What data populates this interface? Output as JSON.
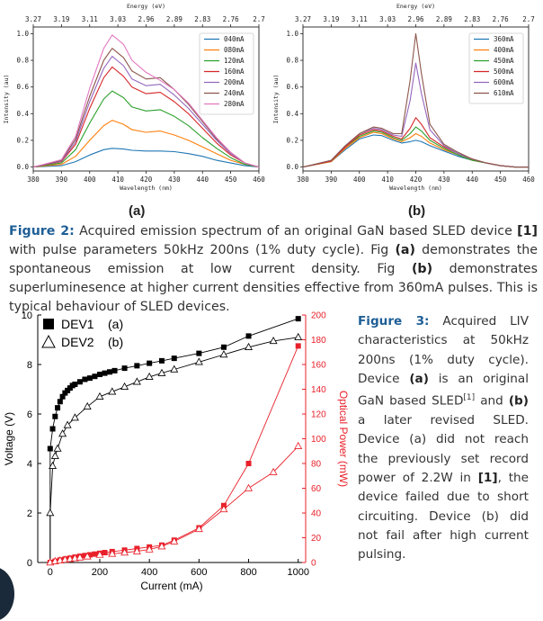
{
  "spectra": [
    {
      "id": "a",
      "top_axis_label": "Energy (eV)",
      "bottom_axis_label": "Wavelength (nm)",
      "y_axis_label": "Intensity (au)",
      "top_ticks": [
        "3.27",
        "3.19",
        "3.11",
        "3.03",
        "2.96",
        "2.89",
        "2.83",
        "2.76",
        "2.7"
      ],
      "x_ticks": [
        "380",
        "390",
        "400",
        "410",
        "420",
        "430",
        "440",
        "450",
        "460"
      ],
      "y_ticks": [
        "0.0",
        "0.2",
        "0.4",
        "0.6",
        "0.8",
        "1.0"
      ],
      "panel_label": "(a)"
    },
    {
      "id": "b",
      "top_axis_label": "Energy (eV)",
      "bottom_axis_label": "Wavelength (nm)",
      "y_axis_label": "Intensity (au)",
      "top_ticks": [
        "3.27",
        "3.19",
        "3.11",
        "3.03",
        "2.96",
        "2.89",
        "2.83",
        "2.76",
        "2.7"
      ],
      "x_ticks": [
        "380",
        "390",
        "400",
        "410",
        "420",
        "430",
        "440",
        "450",
        "460"
      ],
      "y_ticks": [
        "0.0",
        "0.2",
        "0.4",
        "0.6",
        "0.8",
        "1.0"
      ],
      "panel_label": "(b)"
    }
  ],
  "chart_data": [
    {
      "type": "line",
      "panel": "a",
      "xlabel": "Wavelength (nm)",
      "ylabel": "Intensity (au)",
      "x2label": "Energy (eV)",
      "xlim": [
        380,
        460
      ],
      "ylim": [
        -0.03,
        1.05
      ],
      "legend_position": "top-right",
      "series": [
        {
          "name": "040mA",
          "color": "#1f77b4",
          "x": [
            380,
            390,
            395,
            400,
            405,
            408,
            412,
            415,
            420,
            425,
            430,
            435,
            440,
            445,
            450,
            455,
            460
          ],
          "values": [
            0.0,
            0.01,
            0.04,
            0.09,
            0.13,
            0.14,
            0.135,
            0.125,
            0.12,
            0.12,
            0.115,
            0.1,
            0.08,
            0.05,
            0.03,
            0.01,
            0.0
          ]
        },
        {
          "name": "080mA",
          "color": "#ff7f0e",
          "x": [
            380,
            390,
            395,
            400,
            405,
            408,
            412,
            415,
            420,
            425,
            430,
            435,
            440,
            445,
            450,
            455,
            460
          ],
          "values": [
            0.0,
            0.02,
            0.08,
            0.2,
            0.31,
            0.35,
            0.32,
            0.28,
            0.26,
            0.27,
            0.24,
            0.2,
            0.15,
            0.1,
            0.05,
            0.02,
            0.0
          ]
        },
        {
          "name": "120mA",
          "color": "#2ca02c",
          "x": [
            380,
            390,
            395,
            400,
            405,
            408,
            412,
            415,
            420,
            425,
            430,
            435,
            440,
            445,
            450,
            455,
            460
          ],
          "values": [
            0.0,
            0.03,
            0.13,
            0.33,
            0.51,
            0.57,
            0.52,
            0.45,
            0.42,
            0.43,
            0.38,
            0.31,
            0.22,
            0.14,
            0.07,
            0.02,
            0.0
          ]
        },
        {
          "name": "160mA",
          "color": "#d62728",
          "x": [
            380,
            390,
            395,
            400,
            405,
            408,
            412,
            415,
            420,
            425,
            430,
            435,
            440,
            445,
            450,
            455,
            460
          ],
          "values": [
            0.0,
            0.04,
            0.17,
            0.44,
            0.67,
            0.75,
            0.68,
            0.6,
            0.55,
            0.56,
            0.49,
            0.4,
            0.29,
            0.18,
            0.09,
            0.03,
            0.0
          ]
        },
        {
          "name": "200mA",
          "color": "#9467bd",
          "x": [
            380,
            390,
            395,
            400,
            405,
            408,
            412,
            415,
            420,
            425,
            430,
            435,
            440,
            445,
            450,
            455,
            460
          ],
          "values": [
            0.0,
            0.045,
            0.19,
            0.49,
            0.74,
            0.83,
            0.76,
            0.66,
            0.61,
            0.62,
            0.54,
            0.44,
            0.32,
            0.2,
            0.1,
            0.03,
            0.0
          ]
        },
        {
          "name": "240mA",
          "color": "#8c564b",
          "x": [
            380,
            390,
            395,
            400,
            405,
            408,
            412,
            415,
            420,
            425,
            430,
            435,
            440,
            445,
            450,
            455,
            460
          ],
          "values": [
            0.0,
            0.05,
            0.21,
            0.53,
            0.8,
            0.89,
            0.82,
            0.72,
            0.66,
            0.67,
            0.58,
            0.47,
            0.34,
            0.21,
            0.11,
            0.03,
            0.0
          ]
        },
        {
          "name": "280mA",
          "color": "#e377c2",
          "x": [
            380,
            390,
            395,
            400,
            405,
            408,
            412,
            415,
            420,
            425,
            430,
            435,
            440,
            445,
            450,
            455,
            460
          ],
          "values": [
            0.0,
            0.055,
            0.23,
            0.59,
            0.89,
            0.99,
            0.92,
            0.8,
            0.71,
            0.65,
            0.58,
            0.48,
            0.35,
            0.22,
            0.11,
            0.03,
            0.0
          ]
        }
      ]
    },
    {
      "type": "line",
      "panel": "b",
      "xlabel": "Wavelength (nm)",
      "ylabel": "Intensity (au)",
      "x2label": "Energy (eV)",
      "xlim": [
        380,
        460
      ],
      "ylim": [
        -0.03,
        1.05
      ],
      "legend_position": "top-right",
      "series": [
        {
          "name": "360mA",
          "color": "#1f77b4",
          "x": [
            380,
            390,
            395,
            400,
            405,
            408,
            412,
            415,
            418,
            420,
            422,
            425,
            430,
            435,
            440,
            445,
            450,
            455,
            460
          ],
          "values": [
            0.0,
            0.04,
            0.13,
            0.21,
            0.24,
            0.235,
            0.2,
            0.18,
            0.19,
            0.2,
            0.19,
            0.16,
            0.12,
            0.08,
            0.05,
            0.03,
            0.01,
            0.0,
            0.0
          ]
        },
        {
          "name": "400mA",
          "color": "#ff7f0e",
          "x": [
            380,
            390,
            395,
            400,
            405,
            408,
            412,
            415,
            418,
            420,
            422,
            425,
            430,
            435,
            440,
            445,
            450,
            455,
            460
          ],
          "values": [
            0.0,
            0.04,
            0.14,
            0.22,
            0.26,
            0.25,
            0.21,
            0.19,
            0.22,
            0.25,
            0.23,
            0.18,
            0.13,
            0.09,
            0.05,
            0.03,
            0.01,
            0.0,
            0.0
          ]
        },
        {
          "name": "450mA",
          "color": "#2ca02c",
          "x": [
            380,
            390,
            395,
            400,
            405,
            408,
            412,
            415,
            418,
            420,
            422,
            425,
            430,
            435,
            440,
            445,
            450,
            455,
            460
          ],
          "values": [
            0.0,
            0.045,
            0.15,
            0.23,
            0.27,
            0.26,
            0.22,
            0.2,
            0.25,
            0.3,
            0.27,
            0.2,
            0.14,
            0.09,
            0.05,
            0.03,
            0.01,
            0.0,
            0.0
          ]
        },
        {
          "name": "500mA",
          "color": "#d62728",
          "x": [
            380,
            390,
            395,
            400,
            405,
            408,
            412,
            415,
            418,
            420,
            422,
            425,
            430,
            435,
            440,
            445,
            450,
            455,
            460
          ],
          "values": [
            0.0,
            0.045,
            0.15,
            0.24,
            0.28,
            0.27,
            0.23,
            0.21,
            0.29,
            0.37,
            0.32,
            0.22,
            0.15,
            0.1,
            0.06,
            0.03,
            0.01,
            0.0,
            0.0
          ]
        },
        {
          "name": "600mA",
          "color": "#9467bd",
          "x": [
            380,
            390,
            395,
            400,
            405,
            408,
            412,
            415,
            418,
            420,
            422,
            425,
            430,
            435,
            440,
            445,
            450,
            455,
            460
          ],
          "values": [
            0.0,
            0.05,
            0.16,
            0.25,
            0.29,
            0.28,
            0.24,
            0.23,
            0.5,
            0.78,
            0.55,
            0.28,
            0.16,
            0.1,
            0.06,
            0.03,
            0.01,
            0.0,
            0.0
          ]
        },
        {
          "name": "610mA",
          "color": "#8c564b",
          "x": [
            380,
            390,
            395,
            400,
            405,
            408,
            412,
            415,
            418,
            420,
            422,
            425,
            430,
            435,
            440,
            445,
            450,
            455,
            460
          ],
          "values": [
            0.0,
            0.05,
            0.16,
            0.25,
            0.3,
            0.29,
            0.25,
            0.25,
            0.65,
            1.0,
            0.7,
            0.32,
            0.17,
            0.11,
            0.06,
            0.03,
            0.01,
            0.0,
            0.0
          ]
        }
      ]
    },
    {
      "type": "line",
      "panel": "LIV",
      "xlabel": "Current (mA)",
      "ylabel": "Voltage (V)",
      "y2label": "Optical Power (mW)",
      "xlim": [
        -50,
        1030
      ],
      "ylim": [
        0,
        10
      ],
      "y2lim": [
        0,
        200
      ],
      "x_ticks": [
        "0",
        "200",
        "400",
        "600",
        "800",
        "1000"
      ],
      "y_ticks": [
        "0",
        "2",
        "4",
        "6",
        "8",
        "10"
      ],
      "y2_ticks": [
        "0",
        "20",
        "40",
        "60",
        "80",
        "100",
        "120",
        "140",
        "160",
        "180",
        "200"
      ],
      "legend": [
        {
          "name": "DEV1",
          "tag": "(a)"
        },
        {
          "name": "DEV2",
          "tag": "(b)"
        }
      ],
      "legend_position": "top-left",
      "series": [
        {
          "name": "DEV1",
          "axis": "voltage",
          "marker": "square-filled",
          "color": "#000000",
          "x": [
            0,
            10,
            20,
            30,
            40,
            50,
            60,
            70,
            80,
            90,
            100,
            120,
            140,
            160,
            180,
            200,
            220,
            240,
            260,
            300,
            350,
            400,
            450,
            500,
            600,
            700,
            800,
            1000
          ],
          "values": [
            4.6,
            5.4,
            5.9,
            6.25,
            6.5,
            6.7,
            6.85,
            6.95,
            7.05,
            7.15,
            7.2,
            7.3,
            7.4,
            7.45,
            7.52,
            7.6,
            7.65,
            7.7,
            7.75,
            7.85,
            7.95,
            8.05,
            8.15,
            8.25,
            8.45,
            8.7,
            9.15,
            9.85
          ]
        },
        {
          "name": "DEV2",
          "axis": "voltage",
          "marker": "triangle-open",
          "color": "#000000",
          "x": [
            0,
            10,
            20,
            30,
            50,
            70,
            100,
            150,
            200,
            250,
            300,
            350,
            400,
            450,
            500,
            600,
            700,
            800,
            900,
            1000
          ],
          "values": [
            2.0,
            3.9,
            4.3,
            4.6,
            5.2,
            5.55,
            5.85,
            6.3,
            6.7,
            6.9,
            7.1,
            7.3,
            7.5,
            7.65,
            7.8,
            8.1,
            8.4,
            8.7,
            8.95,
            9.1
          ]
        },
        {
          "name": "DEV1",
          "axis": "power",
          "marker": "square-filled",
          "color": "#e8202a",
          "x": [
            0,
            20,
            40,
            60,
            80,
            100,
            120,
            140,
            160,
            180,
            200,
            220,
            250,
            300,
            350,
            400,
            450,
            500,
            600,
            700,
            800,
            1000
          ],
          "values": [
            0,
            1,
            2,
            2.8,
            3.5,
            4.3,
            5,
            5.6,
            6.2,
            6.8,
            7.4,
            8,
            8.8,
            10,
            11.3,
            12.5,
            14,
            18,
            28,
            46,
            80,
            175
          ]
        },
        {
          "name": "DEV2",
          "axis": "power",
          "marker": "triangle-open",
          "color": "#e8202a",
          "x": [
            0,
            20,
            40,
            60,
            80,
            100,
            120,
            150,
            200,
            250,
            300,
            350,
            400,
            450,
            500,
            600,
            700,
            800,
            900,
            1000
          ],
          "values": [
            0,
            1,
            1.6,
            2.2,
            2.8,
            3.4,
            4,
            4.8,
            6.2,
            7,
            8,
            9,
            10.5,
            13,
            17,
            27,
            43,
            60,
            73,
            94
          ]
        }
      ]
    }
  ],
  "caption2": {
    "fig": "Figure 2:",
    "t1": " Acquired emission spectrum of an original GaN based SLED device ",
    "ref1": "[1]",
    "t2": " with pulse parameters 50kHz 200ns (1% duty cycle). Fig ",
    "a": "(a)",
    "t3": " demonstrates the spontaneous emission at low current density. Fig ",
    "b": "(b)",
    "t4": " demonstrates superluminesence at higher current densities effective from 360mA pulses. This is typical behaviour of SLED devices."
  },
  "caption3": {
    "fig": "Figure 3:",
    "t1": " Acquired LIV characteristics at 50kHz 200ns (1% duty cycle). Device ",
    "a": "(a)",
    "t2": " is an original GaN based SLED",
    "sup": "[1]",
    "t3": " and ",
    "b": "(b)",
    "t4": " a later revised SLED. Device (a) did not reach the previously set record power of 2.2W in ",
    "ref": "[1]",
    "t5": ", the device failed due to short circuiting. Device (b) did not fail after high current pulsing."
  }
}
